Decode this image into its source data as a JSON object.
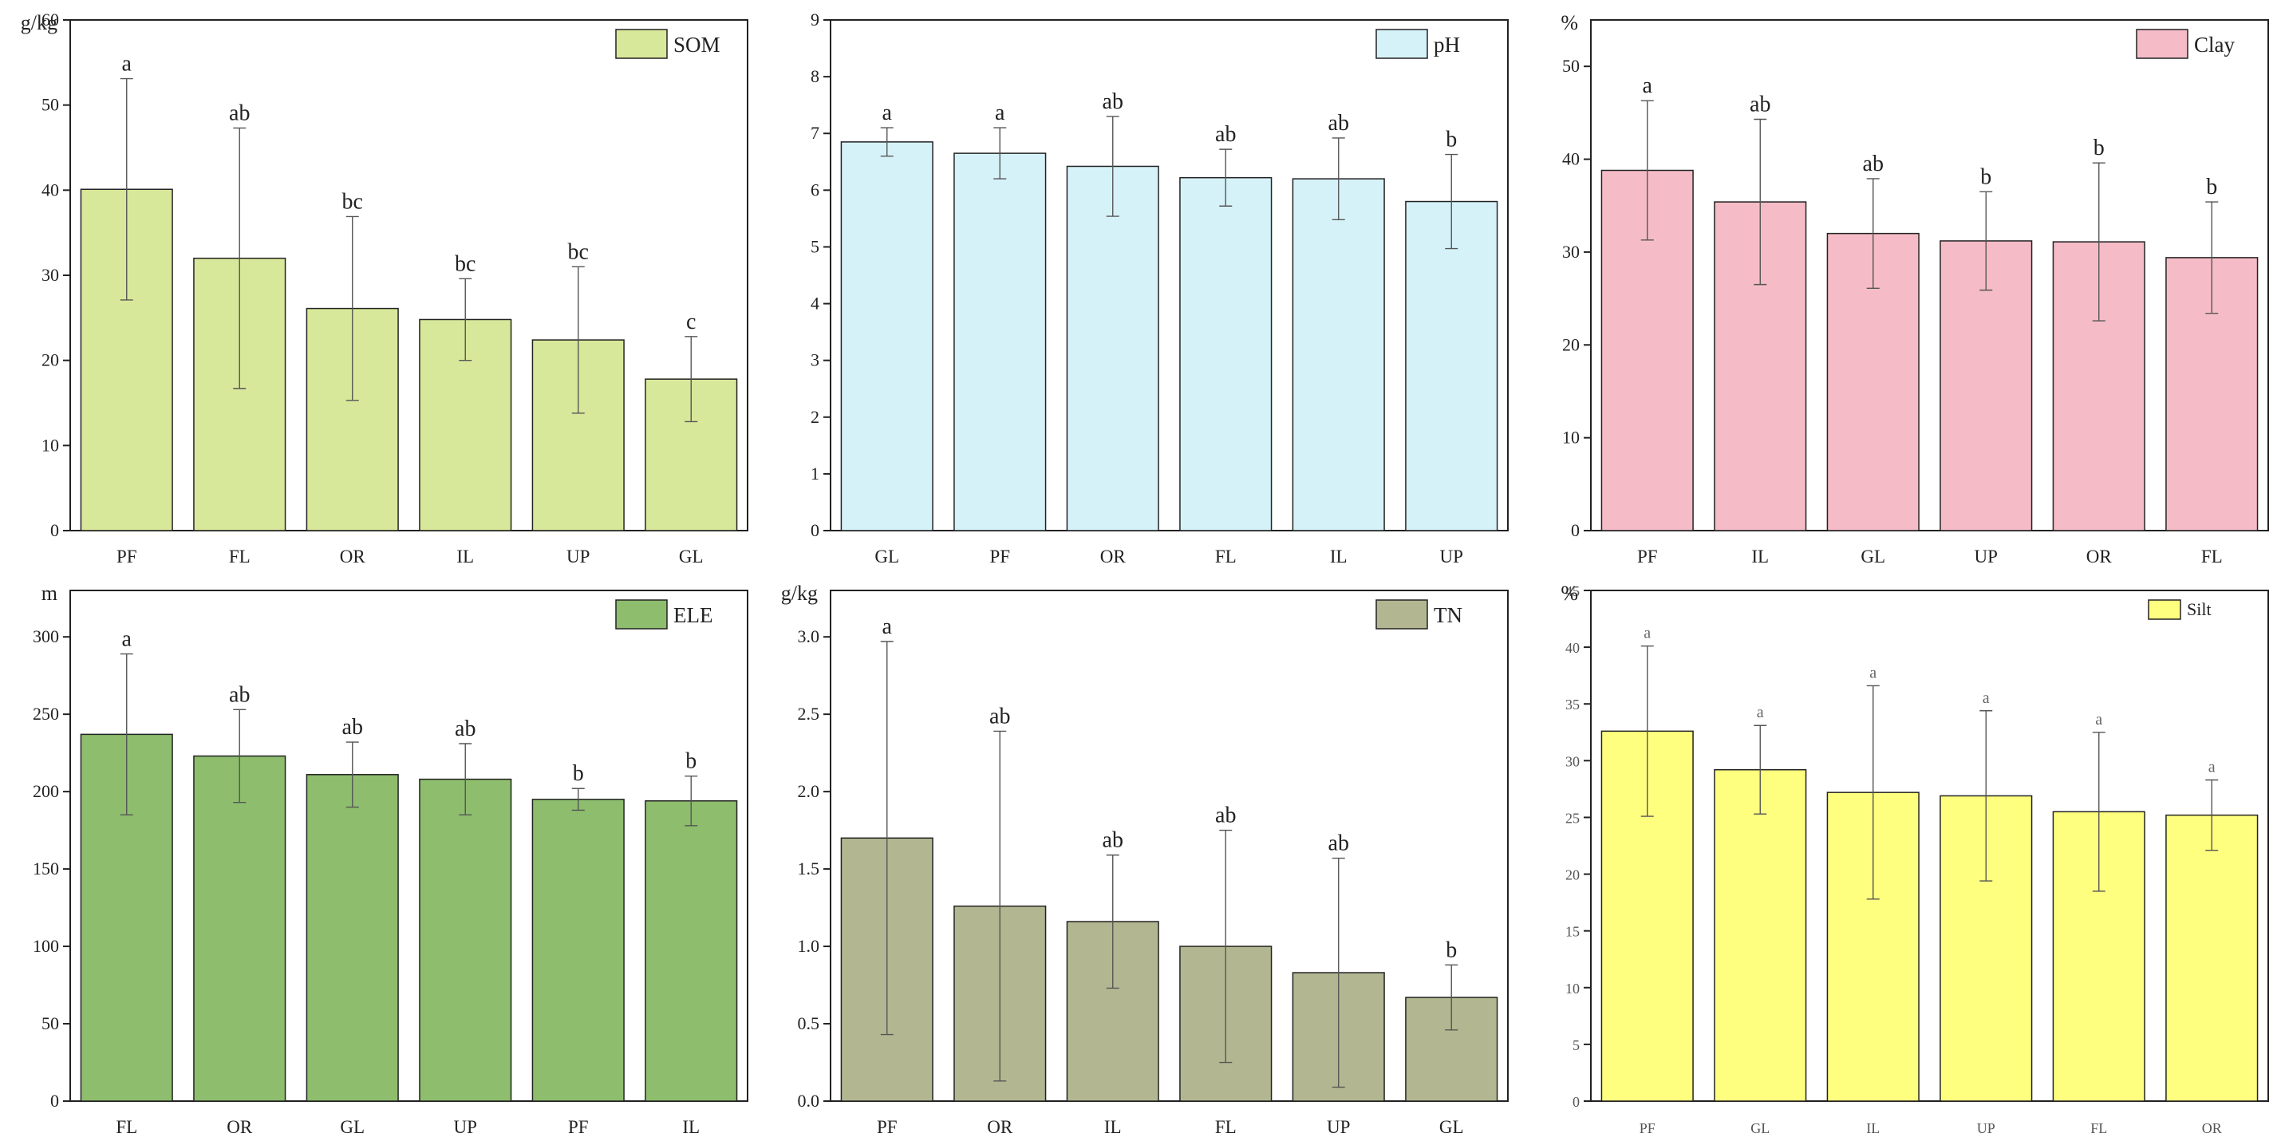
{
  "chart_data": [
    {
      "id": "som",
      "type": "bar",
      "legend": "SOM",
      "unit_label": "g/kg",
      "categories": [
        "PF",
        "FL",
        "OR",
        "IL",
        "UP",
        "GL"
      ],
      "values": [
        40.1,
        32.0,
        26.1,
        24.8,
        22.4,
        17.8
      ],
      "errors": [
        13.0,
        15.3,
        10.8,
        4.8,
        8.6,
        5.0
      ],
      "letters": [
        "a",
        "ab",
        "bc",
        "bc",
        "bc",
        "c"
      ],
      "ylim": [
        0,
        60
      ],
      "yticks": [
        "0",
        "10",
        "20",
        "30",
        "40",
        "50",
        "60"
      ],
      "color": "#d8e89a",
      "legend_position": "top-right",
      "grid": false
    },
    {
      "id": "ph",
      "type": "bar",
      "legend": "pH",
      "unit_label": "",
      "categories": [
        "GL",
        "PF",
        "OR",
        "FL",
        "IL",
        "UP"
      ],
      "values": [
        6.85,
        6.65,
        6.42,
        6.22,
        6.2,
        5.8
      ],
      "errors": [
        0.25,
        0.45,
        0.88,
        0.5,
        0.72,
        0.83
      ],
      "letters": [
        "a",
        "a",
        "ab",
        "ab",
        "ab",
        "b"
      ],
      "ylim": [
        0,
        9
      ],
      "yticks": [
        "0",
        "1",
        "2",
        "3",
        "4",
        "5",
        "6",
        "7",
        "8",
        "9"
      ],
      "color": "#d6f2f9",
      "legend_position": "top-right",
      "grid": false
    },
    {
      "id": "clay",
      "type": "bar",
      "legend": "Clay",
      "unit_label": "%",
      "categories": [
        "PF",
        "IL",
        "GL",
        "UP",
        "OR",
        "FL"
      ],
      "values": [
        38.8,
        35.4,
        32.0,
        31.2,
        31.1,
        29.4
      ],
      "errors": [
        7.5,
        8.9,
        5.9,
        5.3,
        8.5,
        6.0
      ],
      "letters": [
        "a",
        "ab",
        "ab",
        "b",
        "b",
        "b"
      ],
      "ylim": [
        0,
        55
      ],
      "yticks": [
        "0",
        "10",
        "20",
        "30",
        "40",
        "50"
      ],
      "color": "#f5bcc7",
      "legend_position": "top-right",
      "grid": false
    },
    {
      "id": "ele",
      "type": "bar",
      "legend": "ELE",
      "unit_label": "m",
      "categories": [
        "FL",
        "OR",
        "GL",
        "UP",
        "PF",
        "IL"
      ],
      "values": [
        237,
        223,
        211,
        208,
        195,
        194
      ],
      "errors": [
        52,
        30,
        21,
        23,
        7,
        16
      ],
      "letters": [
        "a",
        "ab",
        "ab",
        "ab",
        "b",
        "b"
      ],
      "ylim": [
        0,
        330
      ],
      "yticks": [
        "0",
        "50",
        "100",
        "150",
        "200",
        "250",
        "300"
      ],
      "color": "#8dbd6d",
      "legend_position": "top-right",
      "grid": false
    },
    {
      "id": "tn",
      "type": "bar",
      "legend": "TN",
      "unit_label": "g/kg",
      "categories": [
        "PF",
        "OR",
        "IL",
        "FL",
        "UP",
        "GL"
      ],
      "values": [
        1.7,
        1.26,
        1.16,
        1.0,
        0.83,
        0.67
      ],
      "errors": [
        1.27,
        1.13,
        0.43,
        0.75,
        0.74,
        0.21
      ],
      "letters": [
        "a",
        "ab",
        "ab",
        "ab",
        "ab",
        "b"
      ],
      "ylim": [
        0,
        3.3
      ],
      "yticks": [
        "0.0",
        "0.5",
        "1.0",
        "1.5",
        "2.0",
        "2.5",
        "3.0"
      ],
      "color": "#b3b791",
      "legend_position": "top-right",
      "grid": false
    },
    {
      "id": "silt",
      "type": "bar",
      "legend": "Silt",
      "unit_label": "%",
      "categories": [
        "PF",
        "GL",
        "IL",
        "UP",
        "FL",
        "OR"
      ],
      "values": [
        32.6,
        29.2,
        27.2,
        26.9,
        25.5,
        25.2
      ],
      "errors": [
        7.5,
        3.9,
        9.4,
        7.5,
        7.0,
        3.1
      ],
      "letters": [
        "a",
        "a",
        "a",
        "a",
        "a",
        "a"
      ],
      "ylim": [
        0,
        45
      ],
      "yticks": [
        "0",
        "5",
        "10",
        "15",
        "20",
        "25",
        "30",
        "35",
        "40",
        "45"
      ],
      "color": "#ffff7f",
      "legend_position": "top-right",
      "grid": false
    }
  ]
}
